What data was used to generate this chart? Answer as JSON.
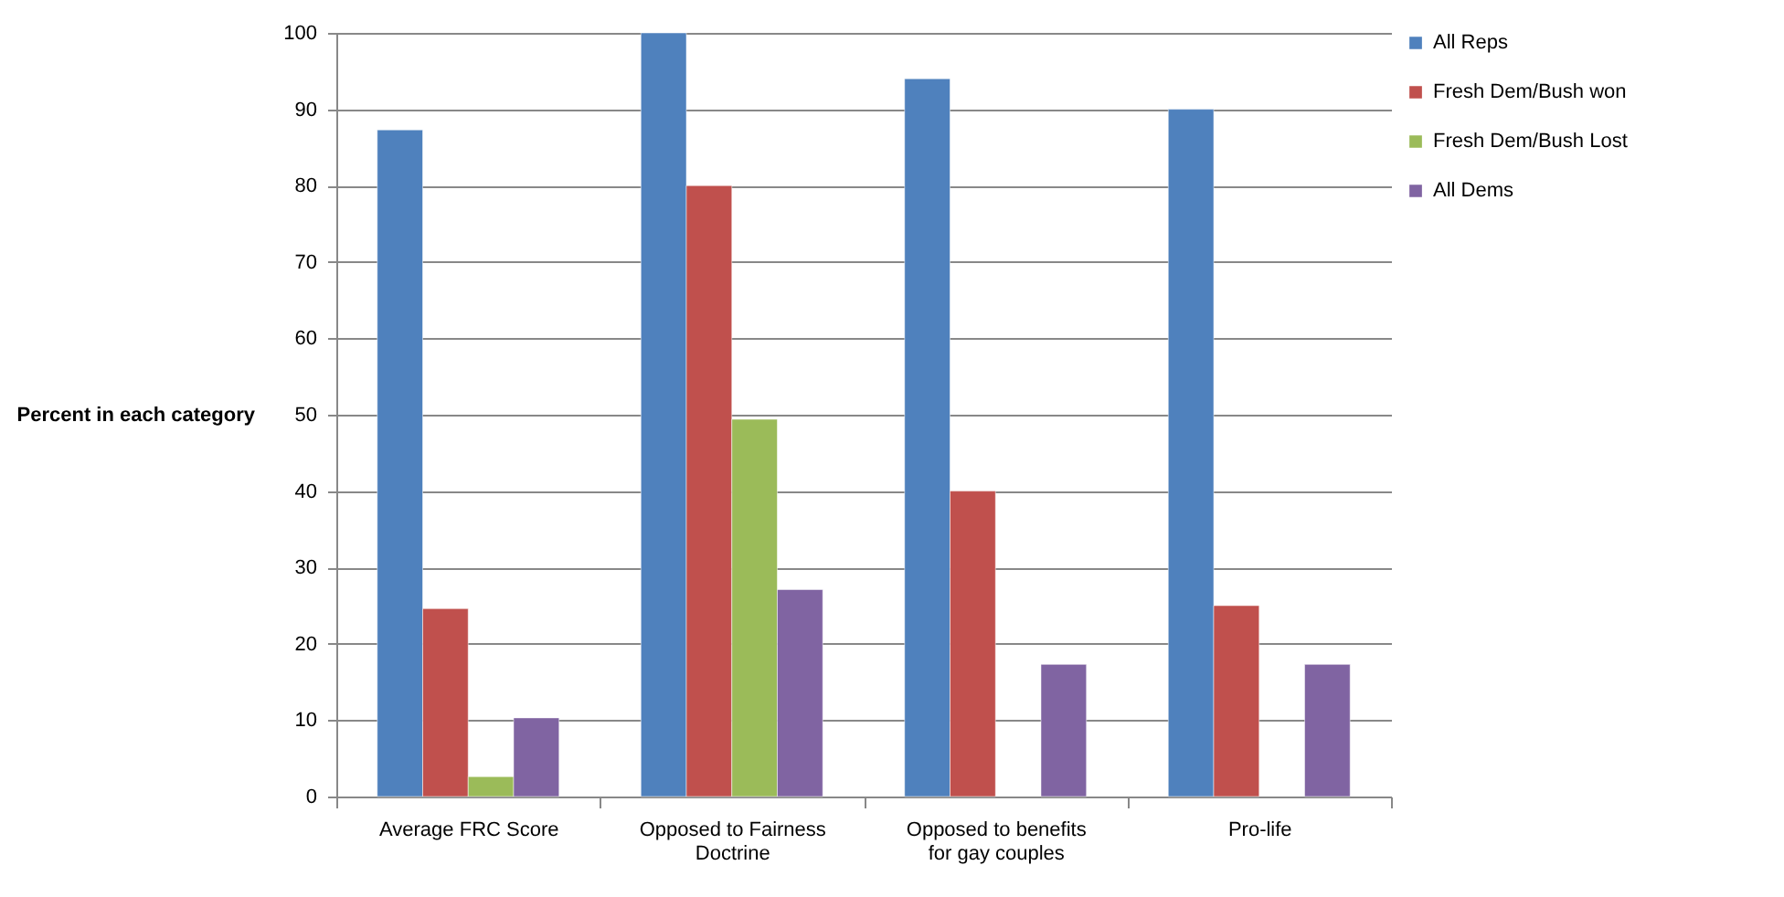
{
  "chart_data": {
    "type": "bar",
    "ylabel": "Percent in each category",
    "categories": [
      "Average FRC Score",
      "Opposed to Fairness Doctrine",
      "Opposed to benefits for gay couples",
      "Pro-life"
    ],
    "series": [
      {
        "name": "All Reps",
        "color": "#4f81bd",
        "values": [
          87.3,
          100,
          94,
          90
        ]
      },
      {
        "name": "Fresh Dem/Bush won",
        "color": "#c0504d",
        "values": [
          24.6,
          80,
          40,
          25
        ]
      },
      {
        "name": "Fresh Dem/Bush Lost",
        "color": "#9bbb59",
        "values": [
          2.6,
          49.4,
          null,
          null
        ]
      },
      {
        "name": "All Dems",
        "color": "#8064a2",
        "values": [
          10.3,
          27.1,
          17.3,
          17.3
        ]
      }
    ],
    "ylim": [
      0,
      100
    ],
    "yticks": [
      0,
      10,
      20,
      30,
      40,
      50,
      60,
      70,
      80,
      90,
      100
    ],
    "grid": "y",
    "legend": "right"
  }
}
